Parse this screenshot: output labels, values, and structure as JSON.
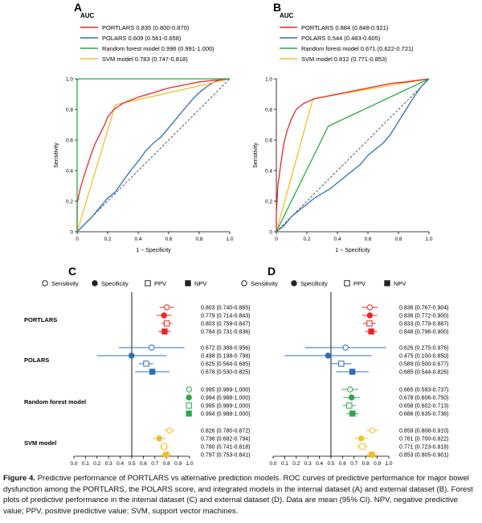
{
  "panels": {
    "roc": [
      {
        "letter": "A",
        "auc_title": "AUC",
        "legend": [
          {
            "label": "PORTLARS 0.835 (0.800-0.870)",
            "color": "#e8262b"
          },
          {
            "label": "POLARS 0.609 (0.561-0.658)",
            "color": "#2d6fb7"
          },
          {
            "label": "Random forest model 0.996 (0.991-1.000)",
            "color": "#29a84a"
          },
          {
            "label": "SVM model 0.783 (0.747-0.818)",
            "color": "#f0c029"
          }
        ]
      },
      {
        "letter": "B",
        "auc_title": "AUC",
        "legend": [
          {
            "label": "PORTLARS 0.884 (0.848-0.921)",
            "color": "#e8262b"
          },
          {
            "label": "POLARS 0.544 (0.483-0.605)",
            "color": "#2d6fb7"
          },
          {
            "label": "Random forest model 0.671 (0.622-0.721)",
            "color": "#29a84a"
          },
          {
            "label": "SVM model 0.812 (0.771-0.853)",
            "color": "#f0c029"
          }
        ]
      }
    ],
    "forest": [
      {
        "letter": "C",
        "legend": [
          "Sensitivity",
          "Specificity",
          "PPV",
          "NPV"
        ],
        "models": [
          {
            "name": "PORTLARS",
            "color": "#e8262b",
            "rows": [
              {
                "est": 0.803,
                "lo": 0.74,
                "hi": 0.865,
                "label": "0.803 (0.740-0.865)"
              },
              {
                "est": 0.779,
                "lo": 0.714,
                "hi": 0.843,
                "label": "0.779 (0.714-0.843)"
              },
              {
                "est": 0.803,
                "lo": 0.759,
                "hi": 0.847,
                "label": "0.803 (0.759-0.847)"
              },
              {
                "est": 0.784,
                "lo": 0.731,
                "hi": 0.836,
                "label": "0.784 (0.731-0.836)"
              }
            ]
          },
          {
            "name": "POLARS",
            "color": "#2d6fb7",
            "rows": [
              {
                "est": 0.672,
                "lo": 0.388,
                "hi": 0.956,
                "label": "0.672 (0.388-0.956)"
              },
              {
                "est": 0.498,
                "lo": 0.198,
                "hi": 0.798,
                "label": "0.498 (0.198-0.798)"
              },
              {
                "est": 0.625,
                "lo": 0.564,
                "hi": 0.685,
                "label": "0.625 (0.564-0.685)"
              },
              {
                "est": 0.678,
                "lo": 0.53,
                "hi": 0.825,
                "label": "0.678 (0.530-0.825)"
              }
            ]
          },
          {
            "name": "Random forest model",
            "color": "#29a84a",
            "rows": [
              {
                "est": 0.995,
                "lo": 0.989,
                "hi": 1.0,
                "label": "0.995 (0.989-1.000)"
              },
              {
                "est": 0.994,
                "lo": 0.988,
                "hi": 1.0,
                "label": "0.994 (0.988-1.000)"
              },
              {
                "est": 0.995,
                "lo": 0.989,
                "hi": 1.0,
                "label": "0.995 (0.989-1.000)"
              },
              {
                "est": 0.994,
                "lo": 0.988,
                "hi": 1.0,
                "label": "0.994 (0.988-1.000)"
              }
            ]
          },
          {
            "name": "SVM model",
            "color": "#f0c029",
            "rows": [
              {
                "est": 0.826,
                "lo": 0.78,
                "hi": 0.872,
                "label": "0.826 (0.780-0.872)"
              },
              {
                "est": 0.738,
                "lo": 0.682,
                "hi": 0.794,
                "label": "0.738 (0.682-0.794)"
              },
              {
                "est": 0.78,
                "lo": 0.741,
                "hi": 0.818,
                "label": "0.780 (0.741-0.818)"
              },
              {
                "est": 0.797,
                "lo": 0.753,
                "hi": 0.841,
                "label": "0.797 (0.753-0.841)"
              }
            ]
          }
        ]
      },
      {
        "letter": "D",
        "legend": [
          "Sensitivity",
          "Specificity",
          "PPV",
          "NPV"
        ],
        "models": [
          {
            "name": "PORTLARS",
            "color": "#e8262b",
            "rows": [
              {
                "est": 0.836,
                "lo": 0.767,
                "hi": 0.904,
                "label": "0.836 (0.767-0.904)"
              },
              {
                "est": 0.836,
                "lo": 0.772,
                "hi": 0.9,
                "label": "0.836 (0.772-0.900)"
              },
              {
                "est": 0.833,
                "lo": 0.779,
                "hi": 0.887,
                "label": "0.833 (0.779-0.887)"
              },
              {
                "est": 0.848,
                "lo": 0.796,
                "hi": 0.9,
                "label": "0.848 (0.796-0.900)"
              }
            ]
          },
          {
            "name": "POLARS",
            "color": "#2d6fb7",
            "rows": [
              {
                "est": 0.626,
                "lo": 0.275,
                "hi": 0.976,
                "label": "0.626 (0.275-0.976)"
              },
              {
                "est": 0.475,
                "lo": 0.1,
                "hi": 0.85,
                "label": "0.475 (0.100-0.850)"
              },
              {
                "est": 0.589,
                "lo": 0.5,
                "hi": 0.677,
                "label": "0.589 (0.500-0.677)"
              },
              {
                "est": 0.685,
                "lo": 0.544,
                "hi": 0.826,
                "label": "0.685 (0.544-0.826)"
              }
            ]
          },
          {
            "name": "Random forest model",
            "color": "#29a84a",
            "rows": [
              {
                "est": 0.665,
                "lo": 0.593,
                "hi": 0.737,
                "label": "0.665 (0.593-0.737)"
              },
              {
                "est": 0.678,
                "lo": 0.606,
                "hi": 0.75,
                "label": "0.678 (0.606-0.750)"
              },
              {
                "est": 0.658,
                "lo": 0.602,
                "hi": 0.713,
                "label": "0.658 (0.602-0.713)"
              },
              {
                "est": 0.686,
                "lo": 0.635,
                "hi": 0.736,
                "label": "0.686 (0.635-0.736)"
              }
            ]
          },
          {
            "name": "SVM model",
            "color": "#f0c029",
            "rows": [
              {
                "est": 0.859,
                "lo": 0.808,
                "hi": 0.91,
                "label": "0.859 (0.808-0.910)"
              },
              {
                "est": 0.761,
                "lo": 0.7,
                "hi": 0.822,
                "label": "0.761 (0.700-0.822)"
              },
              {
                "est": 0.771,
                "lo": 0.723,
                "hi": 0.818,
                "label": "0.771 (0.723-0.818)"
              },
              {
                "est": 0.853,
                "lo": 0.805,
                "hi": 0.901,
                "label": "0.853 (0.805-0.901)"
              }
            ]
          }
        ]
      }
    ]
  },
  "chart_data": [
    {
      "type": "line",
      "panel": "A",
      "title": "AUC",
      "xlabel": "1 − Specificity",
      "ylabel": "Sensitivity",
      "xlim": [
        0,
        1
      ],
      "ylim": [
        0,
        1
      ],
      "x_ticks": [
        "0",
        "0.2",
        "0.4",
        "0.6",
        "0.8",
        "1.0"
      ],
      "y_ticks": [
        "0",
        "0.2",
        "0.4",
        "0.6",
        "0.8",
        "1.0"
      ],
      "series": [
        {
          "name": "PORTLARS",
          "color": "#e8262b",
          "points": [
            [
              0,
              0
            ],
            [
              0,
              0.18
            ],
            [
              0.02,
              0.28
            ],
            [
              0.05,
              0.38
            ],
            [
              0.08,
              0.47
            ],
            [
              0.1,
              0.53
            ],
            [
              0.12,
              0.58
            ],
            [
              0.15,
              0.64
            ],
            [
              0.18,
              0.7
            ],
            [
              0.2,
              0.75
            ],
            [
              0.24,
              0.8
            ],
            [
              0.3,
              0.84
            ],
            [
              0.4,
              0.88
            ],
            [
              0.5,
              0.91
            ],
            [
              0.6,
              0.94
            ],
            [
              0.7,
              0.96
            ],
            [
              0.8,
              0.98
            ],
            [
              0.9,
              0.99
            ],
            [
              1,
              1
            ]
          ]
        },
        {
          "name": "POLARS",
          "color": "#2d6fb7",
          "points": [
            [
              0,
              0
            ],
            [
              0.05,
              0.05
            ],
            [
              0.1,
              0.1
            ],
            [
              0.15,
              0.16
            ],
            [
              0.2,
              0.22
            ],
            [
              0.25,
              0.26
            ],
            [
              0.3,
              0.33
            ],
            [
              0.35,
              0.4
            ],
            [
              0.4,
              0.46
            ],
            [
              0.45,
              0.53
            ],
            [
              0.5,
              0.58
            ],
            [
              0.55,
              0.62
            ],
            [
              0.6,
              0.68
            ],
            [
              0.65,
              0.74
            ],
            [
              0.7,
              0.8
            ],
            [
              0.75,
              0.86
            ],
            [
              0.8,
              0.91
            ],
            [
              0.85,
              0.95
            ],
            [
              0.9,
              0.98
            ],
            [
              0.95,
              1.0
            ],
            [
              1,
              1
            ]
          ]
        },
        {
          "name": "Random forest model",
          "color": "#29a84a",
          "points": [
            [
              0,
              0
            ],
            [
              0,
              0.99
            ],
            [
              0.01,
              1.0
            ],
            [
              1,
              1
            ]
          ]
        },
        {
          "name": "SVM model",
          "color": "#f0c029",
          "points": [
            [
              0,
              0
            ],
            [
              0.25,
              0.83
            ],
            [
              1,
              1
            ]
          ]
        },
        {
          "name": "Reference",
          "color": "#333333",
          "points": [
            [
              0,
              0
            ],
            [
              1,
              1
            ]
          ]
        }
      ]
    },
    {
      "type": "line",
      "panel": "B",
      "title": "AUC",
      "xlabel": "1 − Specificity",
      "ylabel": "Sensitivity",
      "xlim": [
        0,
        1
      ],
      "ylim": [
        0,
        1
      ],
      "x_ticks": [
        "0",
        "0.2",
        "0.4",
        "0.6",
        "0.8",
        "1.0"
      ],
      "y_ticks": [
        "0",
        "0.2",
        "0.4",
        "0.6",
        "0.8",
        "1.0"
      ],
      "series": [
        {
          "name": "PORTLARS",
          "color": "#e8262b",
          "points": [
            [
              0,
              0
            ],
            [
              0,
              0.12
            ],
            [
              0.01,
              0.3
            ],
            [
              0.03,
              0.45
            ],
            [
              0.05,
              0.58
            ],
            [
              0.07,
              0.66
            ],
            [
              0.1,
              0.74
            ],
            [
              0.13,
              0.8
            ],
            [
              0.18,
              0.84
            ],
            [
              0.25,
              0.87
            ],
            [
              0.35,
              0.89
            ],
            [
              0.45,
              0.91
            ],
            [
              0.55,
              0.93
            ],
            [
              0.65,
              0.95
            ],
            [
              0.75,
              0.97
            ],
            [
              0.85,
              0.98
            ],
            [
              0.92,
              0.99
            ],
            [
              1,
              1
            ]
          ]
        },
        {
          "name": "POLARS",
          "color": "#2d6fb7",
          "points": [
            [
              0,
              0
            ],
            [
              0.05,
              0.04
            ],
            [
              0.1,
              0.1
            ],
            [
              0.15,
              0.14
            ],
            [
              0.2,
              0.18
            ],
            [
              0.25,
              0.22
            ],
            [
              0.3,
              0.25
            ],
            [
              0.35,
              0.28
            ],
            [
              0.4,
              0.32
            ],
            [
              0.45,
              0.36
            ],
            [
              0.5,
              0.4
            ],
            [
              0.55,
              0.44
            ],
            [
              0.6,
              0.5
            ],
            [
              0.65,
              0.54
            ],
            [
              0.7,
              0.58
            ],
            [
              0.75,
              0.64
            ],
            [
              0.8,
              0.72
            ],
            [
              0.85,
              0.8
            ],
            [
              0.9,
              0.88
            ],
            [
              0.95,
              0.95
            ],
            [
              1,
              1
            ]
          ]
        },
        {
          "name": "Random forest model",
          "color": "#29a84a",
          "points": [
            [
              0,
              0
            ],
            [
              0.34,
              0.69
            ],
            [
              1,
              1
            ]
          ]
        },
        {
          "name": "SVM model",
          "color": "#f0c029",
          "points": [
            [
              0,
              0
            ],
            [
              0.24,
              0.87
            ],
            [
              1,
              1
            ]
          ]
        },
        {
          "name": "Reference",
          "color": "#333333",
          "points": [
            [
              0,
              0
            ],
            [
              1,
              1
            ]
          ]
        }
      ]
    },
    {
      "type": "forest",
      "panel": "C",
      "x_ticks": [
        "0.0",
        "0.1",
        "0.2",
        "0.3",
        "0.4",
        "0.5",
        "0.6",
        "0.7",
        "0.8",
        "0.9",
        "1.0"
      ],
      "xlim": [
        0,
        1
      ],
      "reference_line": 0.5
    },
    {
      "type": "forest",
      "panel": "D",
      "x_ticks": [
        "0.0",
        "0.1",
        "0.2",
        "0.3",
        "0.4",
        "0.5",
        "0.6",
        "0.7",
        "0.8",
        "0.9",
        "1.0"
      ],
      "xlim": [
        0,
        1
      ],
      "reference_line": 0.5
    }
  ],
  "caption": {
    "figure_label": "Figure 4.",
    "text": " Predictive performance of PORTLARS vs alternative prediction models. ROC curves of predictive performance for major bowel dysfunction among the PORTLARS, the POLARS score, and integrated models in the internal dataset (A) and external dataset (B). Forest plots of predictive performance in the internal dataset (C) and external dataset (D). Data are mean (95% CI). NPV, negative predictive value; PPV, positive predictive value; SVM, support vector machines."
  }
}
